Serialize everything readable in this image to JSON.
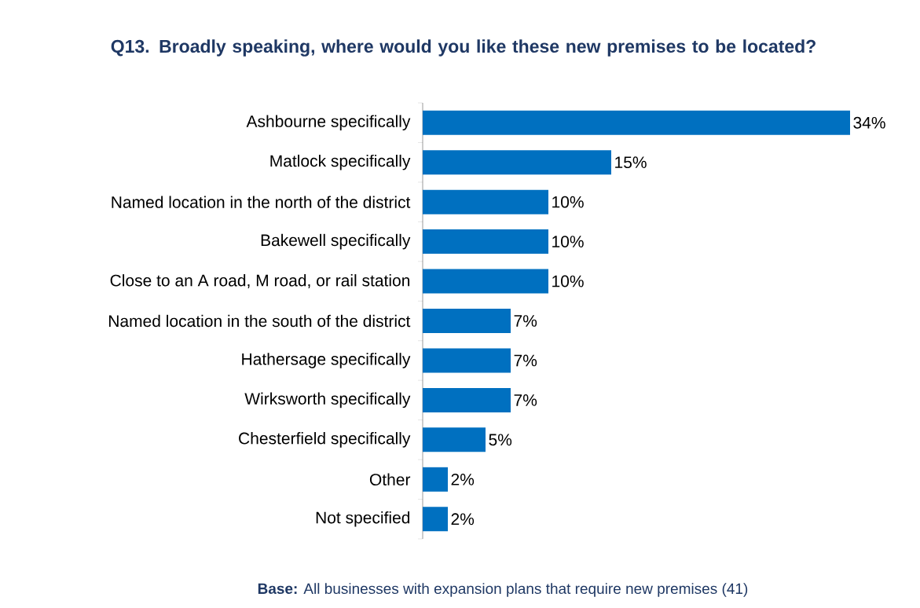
{
  "chart_data": {
    "type": "bar",
    "orientation": "horizontal",
    "title": "Q13. Broadly speaking, where would you like these new premises to be located?",
    "categories": [
      "Ashbourne specifically",
      "Matlock specifically",
      "Named location in the north of the district",
      "Bakewell specifically",
      "Close to an A road, M road, or rail station",
      "Named location in the south of the district",
      "Hathersage specifically",
      "Wirksworth specifically",
      "Chesterfield specifically",
      "Other",
      "Not specified"
    ],
    "values": [
      34,
      15,
      10,
      10,
      10,
      7,
      7,
      7,
      5,
      2,
      2
    ],
    "value_labels": [
      "34%",
      "15%",
      "10%",
      "10%",
      "10%",
      "7%",
      "7%",
      "7%",
      "5%",
      "2%",
      "2%"
    ],
    "color": "#0070c0",
    "annotations": [
      "**Base:** All businesses with expansion plans that require new premises (41)"
    ]
  }
}
